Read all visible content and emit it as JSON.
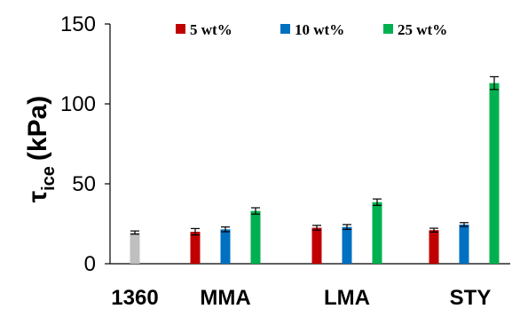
{
  "chart_data": {
    "type": "bar",
    "categories": [
      "1360",
      "MMA",
      "LMA",
      "STY"
    ],
    "ylabel": {
      "symbol": "τ",
      "subscript": "ice",
      "unit": "(kPa)"
    },
    "ylim": [
      0,
      150
    ],
    "yticks": [
      "0",
      "50",
      "100",
      "150"
    ],
    "grid": false,
    "legend_position": "top",
    "reference": {
      "category": "1360",
      "value": 19.5,
      "error": 1,
      "color": "#bfbfbf"
    },
    "series": [
      {
        "name": "5 wt%",
        "color": "#c00000",
        "values": [
          null,
          20,
          22.5,
          21
        ],
        "errors": [
          null,
          2,
          1.5,
          1.2
        ]
      },
      {
        "name": "10 wt%",
        "color": "#0070c0",
        "values": [
          null,
          21.5,
          23,
          24.5
        ],
        "errors": [
          null,
          1.5,
          1.5,
          1.2
        ]
      },
      {
        "name": "25 wt%",
        "color": "#00b050",
        "values": [
          null,
          33,
          38.5,
          113
        ],
        "errors": [
          null,
          2,
          2,
          4
        ]
      }
    ]
  }
}
